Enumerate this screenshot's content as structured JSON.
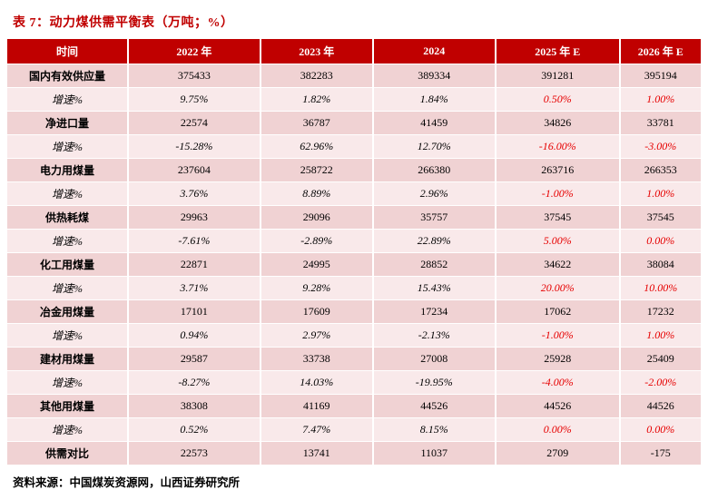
{
  "title": "表 7：动力煤供需平衡表（万吨；%）",
  "source": "资料来源：中国煤炭资源网，山西证券研究所",
  "colors": {
    "header_bg": "#c00000",
    "title_red": "#c00000",
    "row_dark": "#f0d2d3",
    "row_light": "#f9e9ea",
    "forecast_red": "#e60000"
  },
  "table": {
    "columns": [
      "时间",
      "2022 年",
      "2023 年",
      "2024",
      "2025 年 E",
      "2026 年 E"
    ],
    "forecast_column_start_index": 3,
    "rows": [
      {
        "label": "国内有效供应量",
        "type": "main",
        "values": [
          "375433",
          "382283",
          "389334",
          "391281",
          "395194"
        ]
      },
      {
        "label": "增速%",
        "type": "growth",
        "values": [
          "9.75%",
          "1.82%",
          "1.84%",
          "0.50%",
          "1.00%"
        ]
      },
      {
        "label": "净进口量",
        "type": "main",
        "values": [
          "22574",
          "36787",
          "41459",
          "34826",
          "33781"
        ]
      },
      {
        "label": "增速%",
        "type": "growth",
        "values": [
          "-15.28%",
          "62.96%",
          "12.70%",
          "-16.00%",
          "-3.00%"
        ]
      },
      {
        "label": "电力用煤量",
        "type": "main",
        "values": [
          "237604",
          "258722",
          "266380",
          "263716",
          "266353"
        ]
      },
      {
        "label": "增速%",
        "type": "growth",
        "values": [
          "3.76%",
          "8.89%",
          "2.96%",
          "-1.00%",
          "1.00%"
        ]
      },
      {
        "label": "供热耗煤",
        "type": "main",
        "values": [
          "29963",
          "29096",
          "35757",
          "37545",
          "37545"
        ]
      },
      {
        "label": "增速%",
        "type": "growth",
        "values": [
          "-7.61%",
          "-2.89%",
          "22.89%",
          "5.00%",
          "0.00%"
        ]
      },
      {
        "label": "化工用煤量",
        "type": "main",
        "values": [
          "22871",
          "24995",
          "28852",
          "34622",
          "38084"
        ]
      },
      {
        "label": "增速%",
        "type": "growth",
        "values": [
          "3.71%",
          "9.28%",
          "15.43%",
          "20.00%",
          "10.00%"
        ]
      },
      {
        "label": "冶金用煤量",
        "type": "main",
        "values": [
          "17101",
          "17609",
          "17234",
          "17062",
          "17232"
        ]
      },
      {
        "label": "增速%",
        "type": "growth",
        "values": [
          "0.94%",
          "2.97%",
          "-2.13%",
          "-1.00%",
          "1.00%"
        ]
      },
      {
        "label": "建材用煤量",
        "type": "main",
        "values": [
          "29587",
          "33738",
          "27008",
          "25928",
          "25409"
        ]
      },
      {
        "label": "增速%",
        "type": "growth",
        "values": [
          "-8.27%",
          "14.03%",
          "-19.95%",
          "-4.00%",
          "-2.00%"
        ]
      },
      {
        "label": "其他用煤量",
        "type": "main",
        "values": [
          "38308",
          "41169",
          "44526",
          "44526",
          "44526"
        ]
      },
      {
        "label": "增速%",
        "type": "growth",
        "values": [
          "0.52%",
          "7.47%",
          "8.15%",
          "0.00%",
          "0.00%"
        ]
      },
      {
        "label": "供需对比",
        "type": "main",
        "values": [
          "22573",
          "13741",
          "11037",
          "2709",
          "-175"
        ]
      }
    ]
  }
}
